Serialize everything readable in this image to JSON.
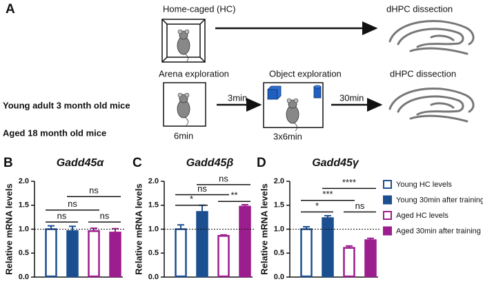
{
  "panel_a": {
    "label": "A",
    "groups": [
      {
        "text": "Young adult 3 month old mice",
        "color": "#1b4f8f"
      },
      {
        "text": "Aged 18 month old mice",
        "color": "#9c1d8e"
      }
    ],
    "home_caged": "Home-caged (HC)",
    "dissection_1": "dHPC dissection",
    "arena": "Arena exploration",
    "arena_time": "6min",
    "gap_1": "3min",
    "object": "Object exploration",
    "object_time": "3x6min",
    "gap_2": "30min",
    "dissection_2": "dHPC dissection"
  },
  "legend": [
    {
      "name": "Young HC levels",
      "color": "#1b4f8f",
      "filled": false
    },
    {
      "name": "Young 30min after training",
      "color": "#1b4f8f",
      "filled": true
    },
    {
      "name": "Aged HC levels",
      "color": "#9c1d8e",
      "filled": false
    },
    {
      "name": "Aged 30min after training",
      "color": "#9c1d8e",
      "filled": true
    }
  ],
  "chart_data": [
    {
      "type": "bar",
      "panel": "B",
      "title": "Gadd45α",
      "y_label": "Relative mRNA levels",
      "ylim": [
        0,
        2
      ],
      "yticks": [
        {
          "value": 0,
          "label": "0.0"
        },
        {
          "value": 0.5,
          "label": "0.5"
        },
        {
          "value": 1,
          "label": "1.0"
        },
        {
          "value": 1.5,
          "label": "1.5"
        },
        {
          "value": 2,
          "label": "2.0"
        }
      ],
      "reference_line": 1,
      "values": [
        1.0,
        0.96,
        0.96,
        0.93
      ],
      "errors": [
        0.07,
        0.1,
        0.06,
        0.08
      ],
      "brackets": [
        {
          "label": "ns",
          "between": [
            "Young HC levels",
            "Young 30min after training"
          ],
          "y": 1.15
        },
        {
          "label": "ns",
          "between": [
            "Aged HC levels",
            "Aged 30min after training"
          ],
          "y": 1.15
        },
        {
          "label": "ns",
          "between": [
            "Young HC levels",
            "Aged HC levels"
          ],
          "y": 1.4
        },
        {
          "label": "ns",
          "between": [
            "Young 30min after training",
            "Aged 30min after training"
          ],
          "y": 1.68
        }
      ]
    },
    {
      "type": "bar",
      "panel": "C",
      "title": "Gadd45β",
      "y_label": "Relative mRNA levels",
      "ylim": [
        0,
        2
      ],
      "yticks": [
        {
          "value": 0,
          "label": "0.0"
        },
        {
          "value": 0.5,
          "label": "0.5"
        },
        {
          "value": 1,
          "label": "1.0"
        },
        {
          "value": 1.5,
          "label": "1.5"
        },
        {
          "value": 2,
          "label": "2.0"
        }
      ],
      "reference_line": 1,
      "values": [
        1.0,
        1.36,
        0.86,
        1.47
      ],
      "errors": [
        0.09,
        0.14,
        0.02,
        0.04
      ],
      "brackets": [
        {
          "label": "*",
          "between": [
            "Young HC levels",
            "Young 30min after training"
          ],
          "y": 1.5
        },
        {
          "label": "**",
          "between": [
            "Aged HC levels",
            "Aged 30min after training"
          ],
          "y": 1.58
        },
        {
          "label": "ns",
          "between": [
            "Young HC levels",
            "Aged HC levels"
          ],
          "y": 1.72
        },
        {
          "label": "ns",
          "between": [
            "Young 30min after training",
            "Aged 30min after training"
          ],
          "y": 1.93
        }
      ]
    },
    {
      "type": "bar",
      "panel": "D",
      "title": "Gadd45γ",
      "y_label": "Relative mRNA levels",
      "ylim": [
        0,
        2
      ],
      "yticks": [
        {
          "value": 0,
          "label": "0.0"
        },
        {
          "value": 0.5,
          "label": "0.5"
        },
        {
          "value": 1,
          "label": "1.0"
        },
        {
          "value": 1.5,
          "label": "1.5"
        },
        {
          "value": 2,
          "label": "2.0"
        }
      ],
      "reference_line": 1,
      "values": [
        1.0,
        1.23,
        0.61,
        0.77
      ],
      "errors": [
        0.05,
        0.05,
        0.04,
        0.04
      ],
      "brackets": [
        {
          "label": "*",
          "between": [
            "Young HC levels",
            "Young 30min after training"
          ],
          "y": 1.36
        },
        {
          "label": "ns",
          "between": [
            "Aged HC levels",
            "Aged 30min after training"
          ],
          "y": 1.36
        },
        {
          "label": "***",
          "between": [
            "Young HC levels",
            "Aged HC levels"
          ],
          "y": 1.6
        },
        {
          "label": "****",
          "between": [
            "Young 30min after training",
            "Aged 30min after training"
          ],
          "y": 1.85
        }
      ]
    }
  ]
}
